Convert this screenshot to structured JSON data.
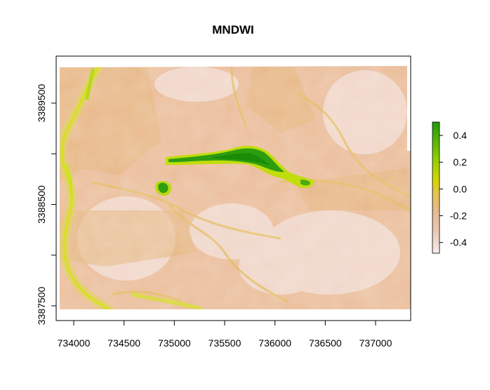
{
  "title": "MNDWI",
  "x_axis": {
    "ticks": [
      734000,
      734500,
      735000,
      735500,
      736000,
      736500,
      737000
    ]
  },
  "y_axis": {
    "ticks": [
      3387500,
      3388500,
      3389500
    ]
  },
  "legend": {
    "ticks": [
      "0.4",
      "0.2",
      "0.0",
      "-0.2",
      "-0.4"
    ],
    "placement": "right",
    "range": [
      -0.48,
      0.5
    ],
    "colors": [
      "#f5ecec",
      "#ecc6b4",
      "#e7b98c",
      "#e4c34f",
      "#d6d600",
      "#8fcd00",
      "#1f9c0a"
    ]
  },
  "map": {
    "x_range": [
      733870,
      737330
    ],
    "y_range": [
      3387470,
      3389840
    ],
    "colors": {
      "land": "#ebbf9d",
      "land_light": "#f1ddd4",
      "ridge": "#e7bd72",
      "channel": "#e0d632",
      "water": "#1f9c0a",
      "water_edge": "#b7db00"
    }
  }
}
